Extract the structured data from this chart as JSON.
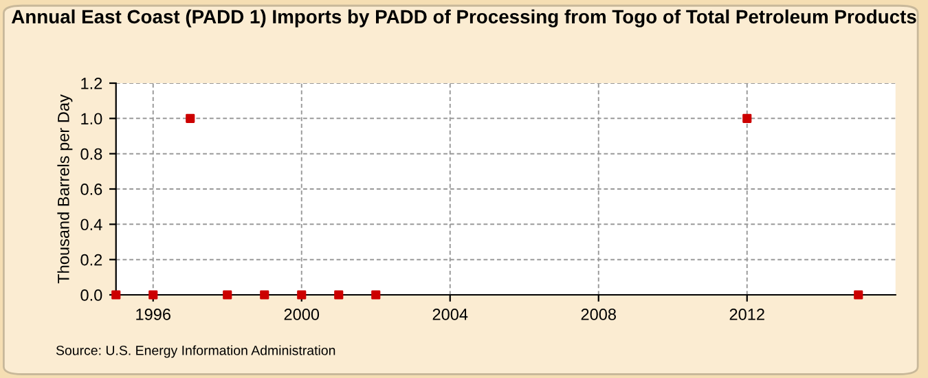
{
  "chart_data": {
    "type": "scatter",
    "title": "Annual East Coast (PADD 1) Imports by PADD of Processing from Togo of Total Petroleum Products",
    "ylabel": "Thousand Barrels per Day",
    "x": [
      1995,
      1996,
      1997,
      1998,
      1999,
      2000,
      2001,
      2002,
      2012,
      2015
    ],
    "series": [
      {
        "color": "#cc0000",
        "values": [
          0,
          0,
          1,
          0,
          0,
          0,
          0,
          0,
          1,
          0
        ]
      }
    ],
    "xlim": [
      1995,
      2016
    ],
    "xticks": [
      1996,
      2000,
      2004,
      2008,
      2012
    ],
    "ylim": [
      0,
      1.2
    ],
    "yticks": [
      {
        "value": 0,
        "label": "0.0"
      },
      {
        "value": 0.2,
        "label": "0.2"
      },
      {
        "value": 0.4,
        "label": "0.4"
      },
      {
        "value": 0.6,
        "label": "0.6"
      },
      {
        "value": 0.8,
        "label": "0.8"
      },
      {
        "value": 1,
        "label": "1.0"
      },
      {
        "value": 1.2,
        "label": "1.2"
      }
    ],
    "grid": true,
    "marker": "square",
    "annotations": [
      "Source: U.S. Energy Information Administration"
    ]
  }
}
